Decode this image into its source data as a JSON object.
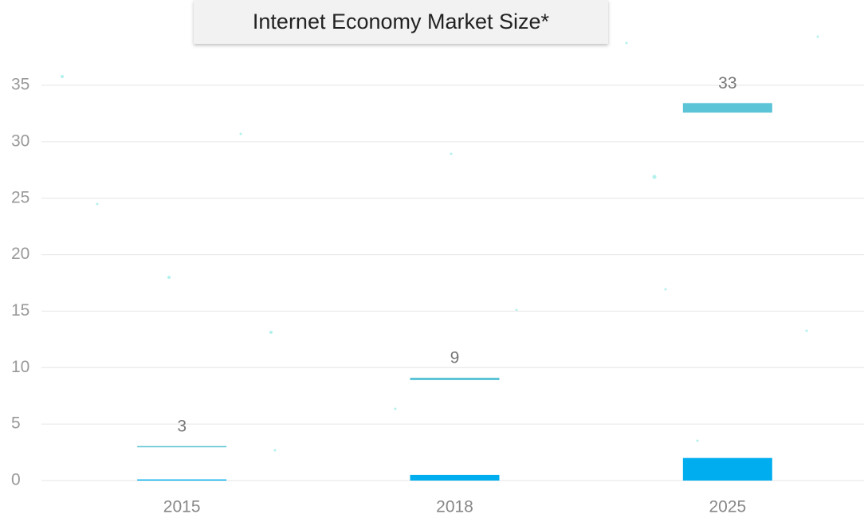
{
  "chart_data": {
    "type": "bar",
    "title": "Internet Economy Market Size*",
    "categories": [
      "2015",
      "2018",
      "2025"
    ],
    "series": [
      {
        "color": "#00aeef",
        "values": [
          0.1,
          0.5,
          2
        ]
      },
      {
        "color": "#5bc4d6",
        "values": [
          3,
          9,
          33
        ]
      }
    ],
    "ylim": [
      0,
      35
    ],
    "yticks": [
      0,
      5,
      10,
      15,
      20,
      25,
      30,
      35
    ],
    "grid": true
  }
}
